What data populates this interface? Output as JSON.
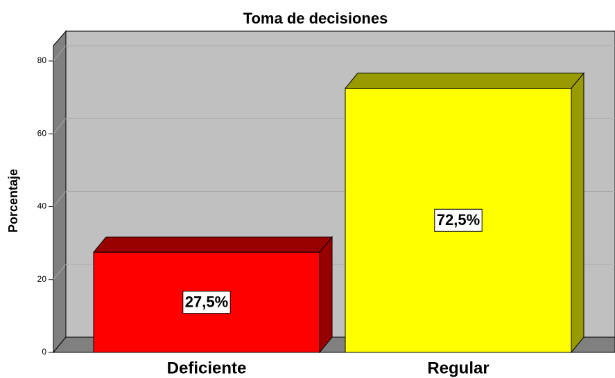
{
  "chart_data": {
    "type": "bar3d",
    "title": "Toma de decisiones",
    "ylabel": "Porcentaje",
    "categories": [
      "Deficiente",
      "Regular"
    ],
    "values": [
      27.5,
      72.5
    ],
    "value_labels": [
      "27,5%",
      "72,5%"
    ],
    "colors": [
      "#ff0000",
      "#ffff00"
    ],
    "top_colors": [
      "#990000",
      "#999900"
    ],
    "ylim": [
      0,
      84
    ],
    "yticks": [
      0,
      20,
      40,
      60,
      80
    ],
    "grid": true
  }
}
